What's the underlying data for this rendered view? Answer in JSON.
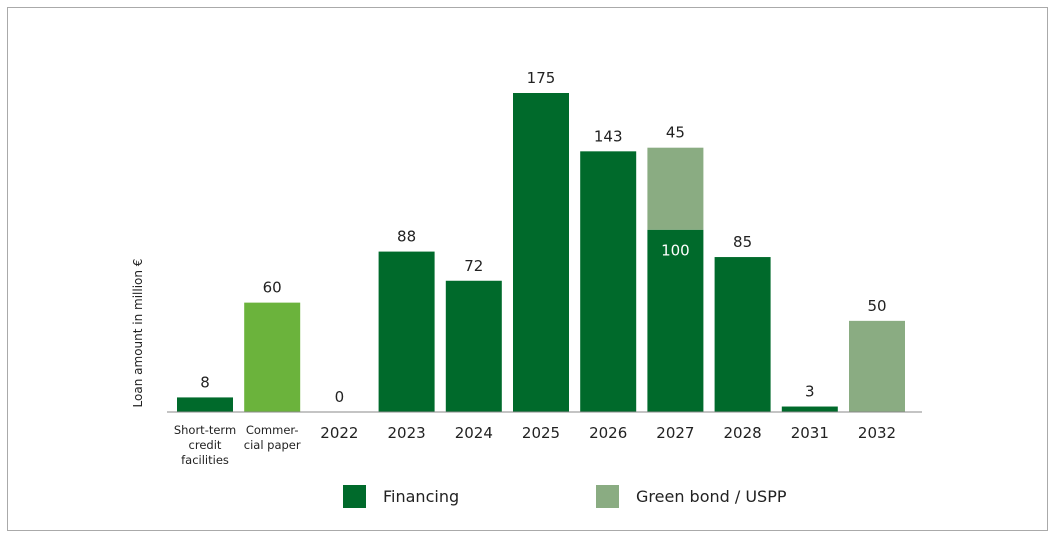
{
  "chart_data": {
    "type": "bar",
    "stacked": true,
    "categories": [
      [
        "Short-term",
        "credit",
        "facilities"
      ],
      [
        "Commer-",
        "cial paper"
      ],
      [
        "2022"
      ],
      [
        "2023"
      ],
      [
        "2024"
      ],
      [
        "2025"
      ],
      [
        "2026"
      ],
      [
        "2027"
      ],
      [
        "2028"
      ],
      [
        "2031"
      ],
      [
        "2032"
      ]
    ],
    "series": [
      {
        "name": "Financing",
        "color": "#006a2b",
        "values": [
          8,
          null,
          0,
          88,
          72,
          175,
          143,
          100,
          85,
          3,
          null
        ]
      },
      {
        "name": "",
        "color": "#6bb33c",
        "values": [
          null,
          60,
          null,
          null,
          null,
          null,
          null,
          null,
          null,
          null,
          null
        ]
      },
      {
        "name": "Green bond / USPP",
        "color": "#8aac82",
        "values": [
          null,
          null,
          null,
          null,
          null,
          null,
          null,
          45,
          null,
          null,
          50
        ]
      }
    ],
    "data_labels": [
      "8",
      "60",
      "0",
      "88",
      "72",
      "175",
      "143",
      "45",
      "85",
      "3",
      "50"
    ],
    "inner_labels": [
      "",
      "",
      "",
      "",
      "",
      "",
      "",
      "100",
      "",
      "",
      ""
    ],
    "ylabel": "Loan amount in million €",
    "ylim": [
      0,
      175
    ],
    "grid": false,
    "legend": {
      "placement": "bottom",
      "items": [
        {
          "label": "Financing",
          "color": "#006a2b"
        },
        {
          "label": "Green bond / USPP",
          "color": "#8aac82"
        }
      ]
    }
  }
}
